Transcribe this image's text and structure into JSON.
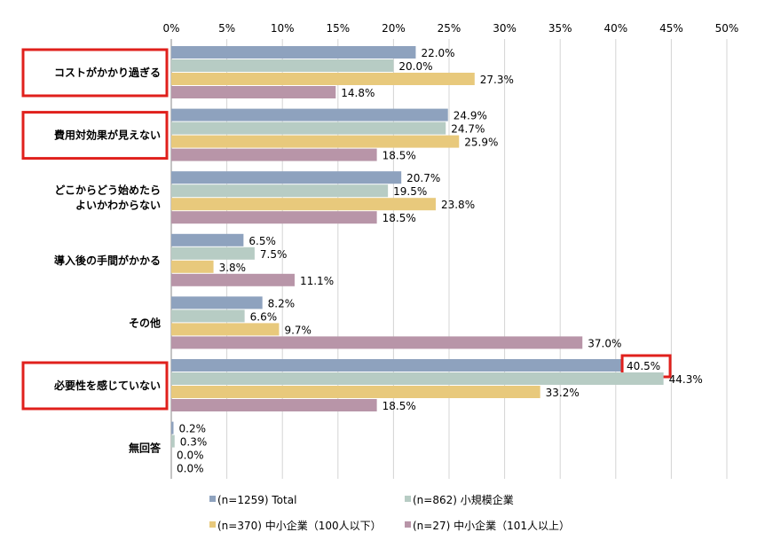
{
  "chart_data": {
    "type": "bar",
    "orientation": "horizontal",
    "categories": [
      [
        "コストがかかり過ぎる"
      ],
      [
        "費用対効果が見えない"
      ],
      [
        "どこからどう始めたら",
        "よいかわからない"
      ],
      [
        "導入後の手間がかかる"
      ],
      [
        "その他"
      ],
      [
        "必要性を感じていない"
      ],
      [
        "無回答"
      ]
    ],
    "series": [
      {
        "name": "(n=1259) Total",
        "color": "#8EA2BE",
        "values": [
          22.0,
          24.9,
          20.7,
          6.5,
          8.2,
          40.5,
          0.2
        ]
      },
      {
        "name": "(n=862) 小規模企業",
        "color": "#B7CCC4",
        "values": [
          20.0,
          24.7,
          19.5,
          7.5,
          6.6,
          44.3,
          0.3
        ]
      },
      {
        "name": "(n=370) 中小企業（100人以下）",
        "color": "#E8C97C",
        "values": [
          27.3,
          25.9,
          23.8,
          3.8,
          9.7,
          33.2,
          0.0
        ]
      },
      {
        "name": "(n=27) 中小企業（101人以上）",
        "color": "#B895A8",
        "values": [
          14.8,
          18.5,
          18.5,
          11.1,
          37.0,
          18.5,
          0.0
        ]
      }
    ],
    "xlim": [
      0,
      50
    ],
    "x_ticks": [
      "0%",
      "5%",
      "10%",
      "15%",
      "20%",
      "25%",
      "30%",
      "35%",
      "40%",
      "45%",
      "50%"
    ],
    "axis_position": "top",
    "grid": true,
    "legend_position": "bottom",
    "value_format": "percent-1dp",
    "highlight_color": "#E0201C",
    "highlighted_categories": [
      0,
      1,
      5
    ],
    "highlighted_values": [
      {
        "category": 5,
        "series": 0
      }
    ]
  }
}
